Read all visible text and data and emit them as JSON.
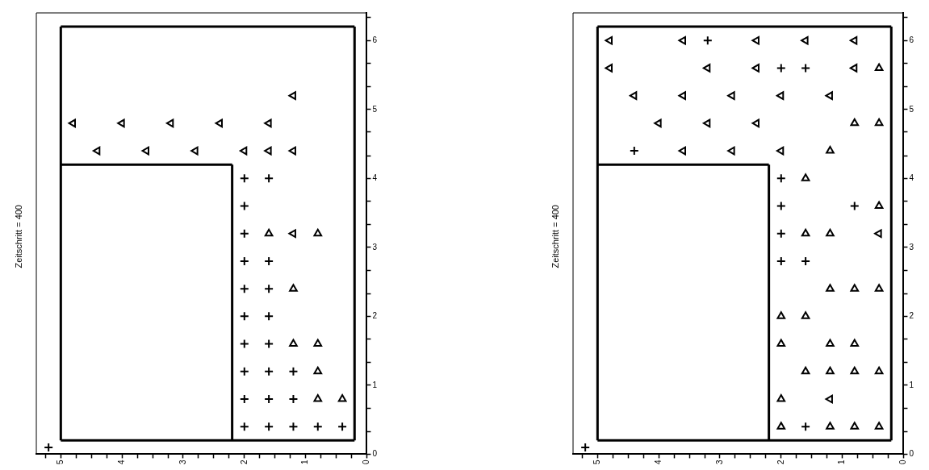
{
  "chart_data": [
    {
      "type": "scatter",
      "title": "Zeitschritt = 400",
      "xlim": [
        5.4,
        0
      ],
      "ylim": [
        0,
        6.4
      ],
      "xticks": [
        0,
        {
          "value": 0.25,
          "label": null
        },
        {
          "value": 0.5,
          "label": null
        },
        {
          "value": 0.75,
          "label": null
        },
        1,
        {
          "value": 1.25,
          "label": null
        },
        {
          "value": 1.5,
          "label": null
        },
        {
          "value": 1.75,
          "label": null
        },
        2,
        {
          "value": 2.25,
          "label": null
        },
        {
          "value": 2.5,
          "label": null
        },
        {
          "value": 2.75,
          "label": null
        },
        3,
        {
          "value": 3.25,
          "label": null
        },
        {
          "value": 3.5,
          "label": null
        },
        {
          "value": 3.75,
          "label": null
        },
        4,
        {
          "value": 4.25,
          "label": null
        },
        {
          "value": 4.5,
          "label": null
        },
        {
          "value": 4.75,
          "label": null
        },
        5,
        {
          "value": 5.25,
          "label": null
        }
      ],
      "yticks": [
        0,
        {
          "value": 0.33,
          "label": null
        },
        {
          "value": 0.67,
          "label": null
        },
        1,
        {
          "value": 1.33,
          "label": null
        },
        {
          "value": 1.67,
          "label": null
        },
        2,
        {
          "value": 2.33,
          "label": null
        },
        {
          "value": 2.67,
          "label": null
        },
        3,
        {
          "value": 3.33,
          "label": null
        },
        {
          "value": 3.67,
          "label": null
        },
        4,
        {
          "value": 4.33,
          "label": null
        },
        {
          "value": 4.67,
          "label": null
        },
        5,
        {
          "value": 5.33,
          "label": null
        },
        {
          "value": 5.67,
          "label": null
        },
        6,
        {
          "value": 6.33,
          "label": null
        }
      ],
      "grid": false,
      "series": [
        {
          "type": "line",
          "marker": "none",
          "color": "#000000",
          "x": [
            5,
            0.2
          ],
          "values": [
            0.2,
            0.2
          ]
        },
        {
          "type": "line",
          "marker": "none",
          "color": "#000000",
          "x": [
            5,
            0.2
          ],
          "values": [
            6.2,
            6.2
          ]
        },
        {
          "type": "line",
          "marker": "none",
          "color": "#000000",
          "x": [
            0.2,
            0.2
          ],
          "values": [
            0.2,
            6.2
          ]
        },
        {
          "type": "line",
          "marker": "none",
          "color": "#000000",
          "x": [
            5,
            5
          ],
          "values": [
            0.2,
            6.2
          ]
        },
        {
          "type": "line",
          "marker": "none",
          "color": "#000000",
          "x": [
            5,
            2.2
          ],
          "values": [
            4.2,
            4.2
          ]
        },
        {
          "type": "line",
          "marker": "none",
          "color": "#000000",
          "x": [
            2.2,
            2.2
          ],
          "values": [
            0.2,
            4.2
          ]
        },
        {
          "type": "scatter",
          "marker": "cross",
          "color": "#000000",
          "x": [
            2.0,
            1.6,
            2.0,
            2.0,
            2.0,
            1.6,
            2.0,
            1.6,
            2.0,
            1.6,
            2.0,
            1.6,
            2.0,
            1.6,
            1.2,
            2.0,
            1.6,
            1.2,
            2.0,
            1.6,
            1.2,
            0.8,
            0.4,
            5.2
          ],
          "values": [
            4.0,
            4.0,
            3.6,
            3.2,
            2.8,
            2.8,
            2.4,
            2.4,
            2.0,
            2.0,
            1.6,
            1.6,
            1.2,
            1.2,
            1.2,
            0.8,
            0.8,
            0.8,
            0.4,
            0.4,
            0.4,
            0.4,
            0.4,
            0.1
          ]
        },
        {
          "type": "scatter",
          "marker": "triangle",
          "color": "#000000",
          "x": [
            1.6,
            0.8,
            1.2,
            1.2,
            0.8,
            0.8,
            0.8,
            0.4
          ],
          "values": [
            3.2,
            3.2,
            2.4,
            1.6,
            1.6,
            1.2,
            0.8,
            0.8
          ]
        },
        {
          "type": "scatter",
          "marker": "triangle-left",
          "color": "#000000",
          "x": [
            1.2,
            4.8,
            4.0,
            3.2,
            2.4,
            1.6,
            4.4,
            3.6,
            2.8,
            2.0,
            1.6,
            1.2,
            1.2
          ],
          "values": [
            5.2,
            4.8,
            4.8,
            4.8,
            4.8,
            4.8,
            4.4,
            4.4,
            4.4,
            4.4,
            4.4,
            4.4,
            3.2
          ]
        }
      ]
    },
    {
      "type": "scatter",
      "title": "Zeitschritt = 400",
      "xlim": [
        5.4,
        0
      ],
      "ylim": [
        0,
        6.4
      ],
      "xticks": [
        0,
        {
          "value": 0.25,
          "label": null
        },
        {
          "value": 0.5,
          "label": null
        },
        {
          "value": 0.75,
          "label": null
        },
        1,
        {
          "value": 1.25,
          "label": null
        },
        {
          "value": 1.5,
          "label": null
        },
        {
          "value": 1.75,
          "label": null
        },
        2,
        {
          "value": 2.25,
          "label": null
        },
        {
          "value": 2.5,
          "label": null
        },
        {
          "value": 2.75,
          "label": null
        },
        3,
        {
          "value": 3.25,
          "label": null
        },
        {
          "value": 3.5,
          "label": null
        },
        {
          "value": 3.75,
          "label": null
        },
        4,
        {
          "value": 4.25,
          "label": null
        },
        {
          "value": 4.5,
          "label": null
        },
        {
          "value": 4.75,
          "label": null
        },
        5,
        {
          "value": 5.25,
          "label": null
        }
      ],
      "yticks": [
        0,
        {
          "value": 0.33,
          "label": null
        },
        {
          "value": 0.67,
          "label": null
        },
        1,
        {
          "value": 1.33,
          "label": null
        },
        {
          "value": 1.67,
          "label": null
        },
        2,
        {
          "value": 2.33,
          "label": null
        },
        {
          "value": 2.67,
          "label": null
        },
        3,
        {
          "value": 3.33,
          "label": null
        },
        {
          "value": 3.67,
          "label": null
        },
        4,
        {
          "value": 4.33,
          "label": null
        },
        {
          "value": 4.67,
          "label": null
        },
        5,
        {
          "value": 5.33,
          "label": null
        },
        {
          "value": 5.67,
          "label": null
        },
        6,
        {
          "value": 6.33,
          "label": null
        }
      ],
      "grid": false,
      "series": [
        {
          "type": "line",
          "marker": "none",
          "color": "#000000",
          "x": [
            5,
            0.2
          ],
          "values": [
            0.2,
            0.2
          ]
        },
        {
          "type": "line",
          "marker": "none",
          "color": "#000000",
          "x": [
            5,
            0.2
          ],
          "values": [
            6.2,
            6.2
          ]
        },
        {
          "type": "line",
          "marker": "none",
          "color": "#000000",
          "x": [
            0.2,
            0.2
          ],
          "values": [
            0.2,
            6.2
          ]
        },
        {
          "type": "line",
          "marker": "none",
          "color": "#000000",
          "x": [
            5,
            5
          ],
          "values": [
            0.2,
            6.2
          ]
        },
        {
          "type": "line",
          "marker": "none",
          "color": "#000000",
          "x": [
            5,
            2.2
          ],
          "values": [
            4.2,
            4.2
          ]
        },
        {
          "type": "line",
          "marker": "none",
          "color": "#000000",
          "x": [
            2.2,
            2.2
          ],
          "values": [
            0.2,
            4.2
          ]
        },
        {
          "type": "scatter",
          "marker": "cross",
          "color": "#000000",
          "x": [
            3.2,
            2.0,
            1.6,
            4.4,
            2.0,
            2.0,
            0.8,
            2.0,
            2.0,
            1.6,
            1.6,
            5.2
          ],
          "values": [
            6.0,
            5.6,
            5.6,
            4.4,
            4.0,
            3.6,
            3.6,
            3.2,
            2.8,
            2.8,
            0.4,
            0.1
          ]
        },
        {
          "type": "scatter",
          "marker": "triangle",
          "color": "#000000",
          "x": [
            0.4,
            0.8,
            0.4,
            1.2,
            1.6,
            0.4,
            1.6,
            1.2,
            1.2,
            0.8,
            0.4,
            2.0,
            1.6,
            2.0,
            1.2,
            0.8,
            1.6,
            1.2,
            0.8,
            0.4,
            2.0,
            2.0,
            1.2,
            0.8,
            0.4
          ],
          "values": [
            5.6,
            4.8,
            4.8,
            4.4,
            4.0,
            3.6,
            3.2,
            3.2,
            2.4,
            2.4,
            2.4,
            2.0,
            2.0,
            1.6,
            1.6,
            1.6,
            1.2,
            1.2,
            1.2,
            1.2,
            0.8,
            0.4,
            0.4,
            0.4,
            0.4
          ]
        },
        {
          "type": "scatter",
          "marker": "triangle-left",
          "color": "#000000",
          "x": [
            4.8,
            3.6,
            2.4,
            1.6,
            0.8,
            4.8,
            3.2,
            2.4,
            0.8,
            4.4,
            3.6,
            2.8,
            2.0,
            1.2,
            4.0,
            3.2,
            2.4,
            3.6,
            2.8,
            2.0,
            0.4,
            1.2
          ],
          "values": [
            6.0,
            6.0,
            6.0,
            6.0,
            6.0,
            5.6,
            5.6,
            5.6,
            5.6,
            5.2,
            5.2,
            5.2,
            5.2,
            5.2,
            4.8,
            4.8,
            4.8,
            4.4,
            4.4,
            4.4,
            3.2,
            0.8
          ]
        }
      ]
    }
  ]
}
